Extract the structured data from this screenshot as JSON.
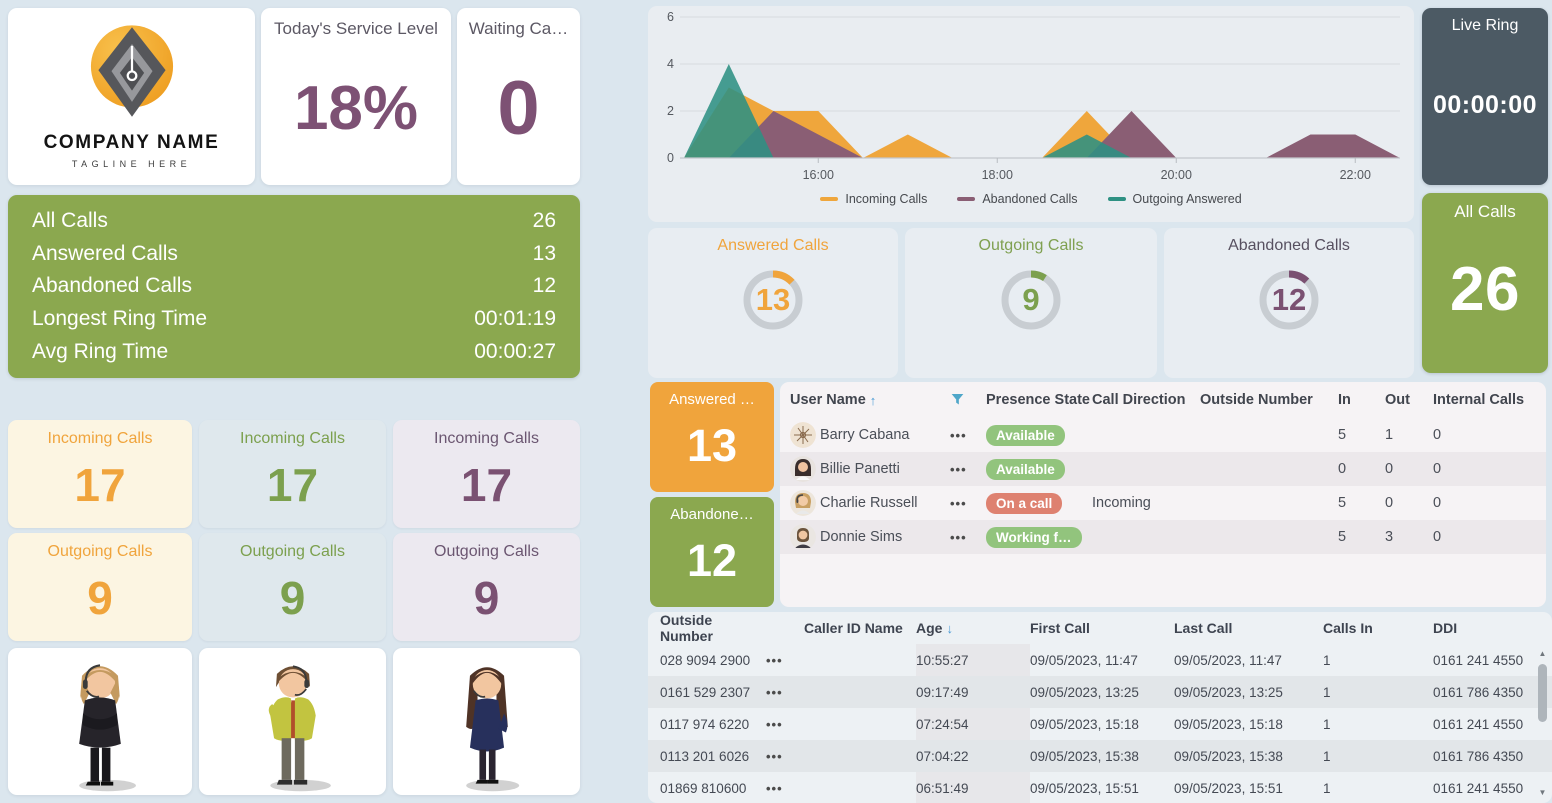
{
  "palette": {
    "orange": "#F0A43C",
    "green": "#8BA84F",
    "plum": "#7D5174",
    "teal": "#2E9183",
    "mauve": "#8A5E74",
    "slate": "#4C5A64",
    "pill_green": "#92C47D",
    "pill_red": "#DE8170"
  },
  "logo": {
    "company": "COMPANY NAME",
    "tagline": "TAGLINE HERE"
  },
  "kpi_cards": {
    "service_level": {
      "title": "Today's Service Level",
      "value": "18%"
    },
    "waiting": {
      "title": "Waiting Ca…",
      "value": "0"
    }
  },
  "stats_panel": {
    "rows": [
      {
        "label": "All Calls",
        "value": "26"
      },
      {
        "label": "Answered Calls",
        "value": "13"
      },
      {
        "label": "Abandoned Calls",
        "value": "12"
      },
      {
        "label": "Longest Ring Time",
        "value": "00:01:19"
      },
      {
        "label": "Avg Ring Time",
        "value": "00:00:27"
      }
    ]
  },
  "metric_cards": [
    {
      "title": "Incoming Calls",
      "value": "17"
    },
    {
      "title": "Incoming Calls",
      "value": "17"
    },
    {
      "title": "Incoming Calls",
      "value": "17"
    },
    {
      "title": "Outgoing Calls",
      "value": "9"
    },
    {
      "title": "Outgoing Calls",
      "value": "9"
    },
    {
      "title": "Outgoing Calls",
      "value": "9"
    }
  ],
  "live_ring": {
    "title": "Live Ring",
    "value": "00:00:00"
  },
  "all_calls": {
    "title": "All Calls",
    "value": "26"
  },
  "donuts": [
    {
      "title": "Answered Calls",
      "value": 13,
      "max": 100,
      "title_color": "#F0A43C",
      "value_color": "#F0A43C"
    },
    {
      "title": "Outgoing Calls",
      "value": 9,
      "max": 100,
      "title_color": "#7FA050",
      "value_color": "#7CA04E"
    },
    {
      "title": "Abandoned Calls",
      "value": 12,
      "max": 100,
      "title_color": "#575060",
      "value_color": "#7B5172"
    }
  ],
  "side_cards": [
    {
      "title": "Answered …",
      "value": "13"
    },
    {
      "title": "Abandone…",
      "value": "12"
    }
  ],
  "agents_table": {
    "headers": {
      "user": "User Name",
      "presence": "Presence State",
      "direction": "Call Direction",
      "outside": "Outside Number",
      "in": "In",
      "out": "Out",
      "internal": "Internal Calls"
    },
    "sort": {
      "column": "User Name",
      "dir": "asc",
      "arrow": "↑"
    },
    "rows": [
      {
        "name": "Barry Cabana",
        "avatar": "flower",
        "presence": "Available",
        "presence_type": "available",
        "direction": "",
        "outside": "",
        "in": "5",
        "out": "1",
        "internal": "0"
      },
      {
        "name": "Billie Panetti",
        "avatar": "woman-dark",
        "presence": "Available",
        "presence_type": "available",
        "direction": "",
        "outside": "",
        "in": "0",
        "out": "0",
        "internal": "0"
      },
      {
        "name": "Charlie Russell",
        "avatar": "woman-headset",
        "presence": "On a call",
        "presence_type": "busy",
        "direction": "Incoming",
        "outside": "",
        "in": "5",
        "out": "0",
        "internal": "0"
      },
      {
        "name": "Donnie Sims",
        "avatar": "man-beard",
        "presence": "Working f…",
        "presence_type": "available",
        "direction": "",
        "outside": "",
        "in": "5",
        "out": "3",
        "internal": "0"
      }
    ]
  },
  "calls_table": {
    "headers": {
      "outside": "Outside Number",
      "caller_id": "Caller ID Name",
      "age": "Age",
      "first": "First Call",
      "last": "Last Call",
      "calls_in": "Calls In",
      "ddi": "DDI"
    },
    "sort": {
      "column": "Age",
      "dir": "desc",
      "arrow": "↓"
    },
    "rows": [
      {
        "outside": "028 9094 2900",
        "caller_id": "",
        "age": "10:55:27",
        "first": "09/05/2023, 11:47",
        "last": "09/05/2023, 11:47",
        "calls_in": "1",
        "ddi": "0161 241 4550"
      },
      {
        "outside": "0161 529 2307",
        "caller_id": "",
        "age": "09:17:49",
        "first": "09/05/2023, 13:25",
        "last": "09/05/2023, 13:25",
        "calls_in": "1",
        "ddi": "0161 786 4350"
      },
      {
        "outside": "0117 974 6220",
        "caller_id": "",
        "age": "07:24:54",
        "first": "09/05/2023, 15:18",
        "last": "09/05/2023, 15:18",
        "calls_in": "1",
        "ddi": "0161 241 4550"
      },
      {
        "outside": "0113 201 6026",
        "caller_id": "",
        "age": "07:04:22",
        "first": "09/05/2023, 15:38",
        "last": "09/05/2023, 15:38",
        "calls_in": "1",
        "ddi": "0161 786 4350"
      },
      {
        "outside": "01869 810600",
        "caller_id": "",
        "age": "06:51:49",
        "first": "09/05/2023, 15:51",
        "last": "09/05/2023, 15:51",
        "calls_in": "1",
        "ddi": "0161 241 4550"
      }
    ]
  },
  "chart_data": {
    "type": "area",
    "x": [
      "14:30",
      "15:00",
      "15:30",
      "16:00",
      "16:30",
      "17:00",
      "17:30",
      "18:00",
      "18:30",
      "19:00",
      "19:30",
      "20:00",
      "20:30",
      "21:00",
      "21:30",
      "22:00",
      "22:30"
    ],
    "series": [
      {
        "name": "Incoming Calls",
        "color": "#EFA63C",
        "values": [
          0,
          3,
          2,
          2,
          0,
          1,
          0,
          0,
          0,
          2,
          0,
          0,
          0,
          0,
          0,
          0,
          0
        ]
      },
      {
        "name": "Abandoned Calls",
        "color": "#8A5E74",
        "values": [
          0,
          0,
          2,
          1,
          0,
          0,
          0,
          0,
          0,
          0,
          2,
          0,
          0,
          0,
          1,
          1,
          0
        ]
      },
      {
        "name": "Outgoing Answered",
        "color": "#2E9183",
        "values": [
          0,
          4,
          0,
          0,
          0,
          0,
          0,
          0,
          0,
          1,
          0,
          0,
          0,
          0,
          0,
          0,
          0
        ]
      }
    ],
    "ylim": [
      0,
      6
    ],
    "yticks": [
      0,
      2,
      4,
      6
    ],
    "xticks": [
      {
        "label": "16:00",
        "index": 3
      },
      {
        "label": "18:00",
        "index": 7
      },
      {
        "label": "20:00",
        "index": 11
      },
      {
        "label": "22:00",
        "index": 15
      }
    ],
    "grid": true,
    "legend_position": "bottom"
  }
}
